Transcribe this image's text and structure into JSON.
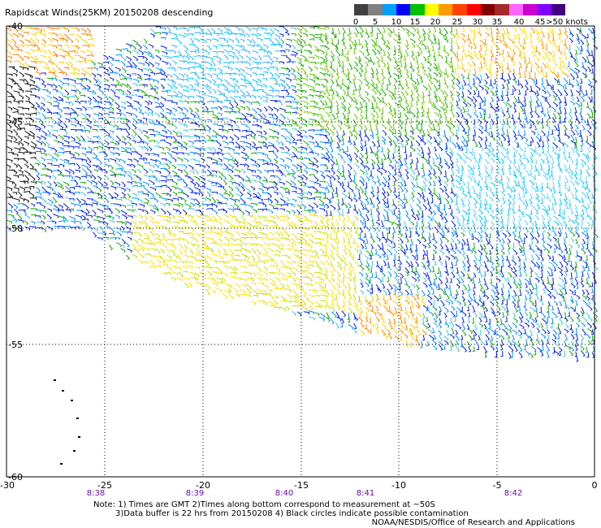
{
  "title": "Rapidscat Winds(25KM) 20150208 descending",
  "legend": {
    "labels": [
      "0",
      "5",
      "10",
      "15",
      "20",
      "25",
      "30",
      "35",
      "40",
      "45",
      ">50 knots"
    ],
    "colors": [
      "#404040",
      "#808080",
      "#00a0ff",
      "#0000ff",
      "#00c000",
      "#ffff00",
      "#ff9900",
      "#ff4400",
      "#ff0000",
      "#800000",
      "#a52a2a",
      "#ff66ff",
      "#cc00cc",
      "#8000ff",
      "#400080"
    ]
  },
  "map": {
    "lon_labels": [
      "-30",
      "-25",
      "-20",
      "-15",
      "-10",
      "-5",
      "0"
    ],
    "lat_labels": [
      "-40",
      "-45",
      "-50",
      "-55",
      "-60"
    ],
    "time_labels": [
      "8:38",
      "8:39",
      "8:40",
      "8:41",
      "8:42"
    ]
  },
  "notes": [
    "Note: 1) Times are GMT 2)Times along bottom correspond to measurement at ~50S",
    "3)Data buffer is 22 hrs from 20150208 4) Black circles indicate possible contamination"
  ],
  "credit": "NOAA/NESDIS/Office of Research and Applications"
}
